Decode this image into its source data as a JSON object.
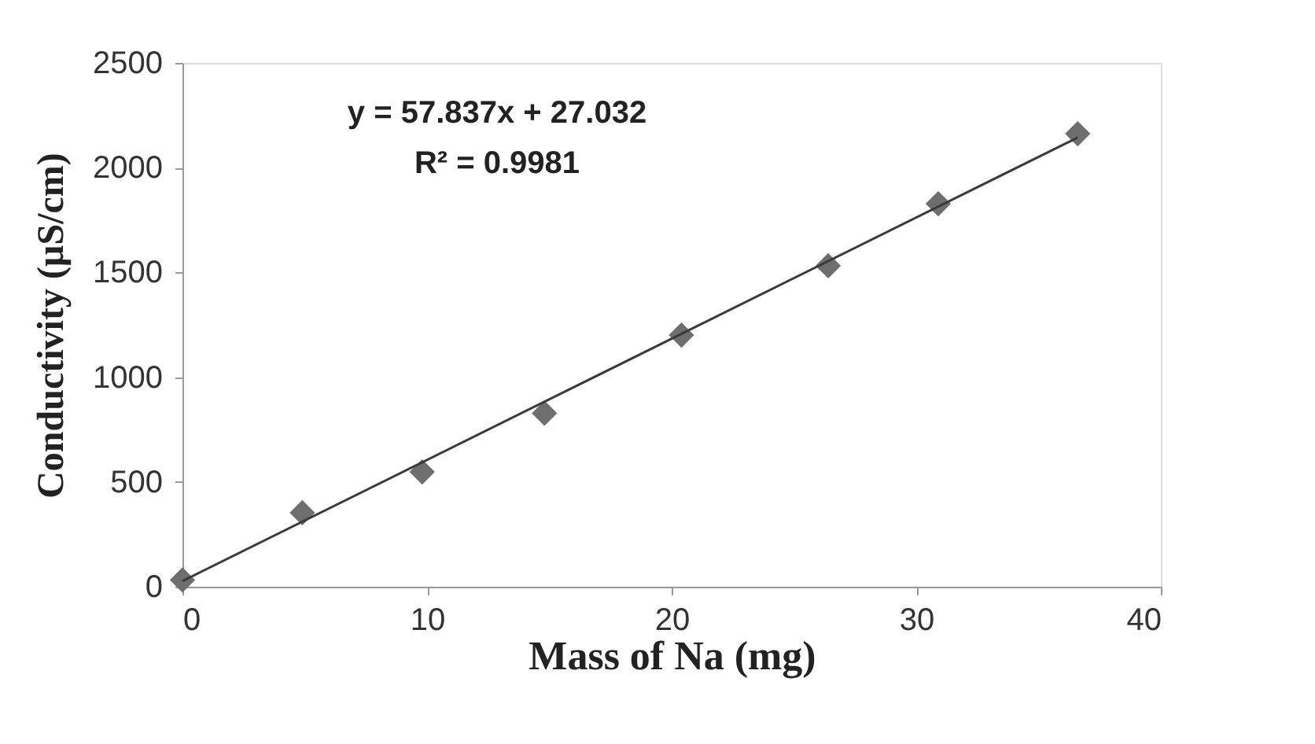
{
  "chart_data": {
    "type": "scatter",
    "xlabel": "Mass of Na (mg)",
    "ylabel": "Conductivity (µS/cm)",
    "xlim": [
      0,
      40
    ],
    "xticks": [
      0,
      10,
      20,
      30,
      40
    ],
    "ylim": [
      0,
      2500
    ],
    "yticks": [
      0,
      500,
      1000,
      1500,
      2000,
      2500
    ],
    "grid": false,
    "marker": "diamond",
    "series": [
      {
        "color": "#6e6e6e",
        "x": [
          0,
          4.9,
          9.8,
          14.8,
          20.4,
          26.4,
          30.9,
          36.6
        ],
        "values": [
          32,
          353,
          548,
          828,
          1201,
          1532,
          1828,
          2162
        ]
      },
      {
        "type": "line",
        "color": "#3a3a3a",
        "marker": "none",
        "line_style": "solid",
        "x": [
          0,
          36.6
        ],
        "values": [
          27,
          2144
        ]
      }
    ],
    "annotations": [
      "y = 57.837x + 27.032",
      "R² = 0.9981"
    ]
  }
}
